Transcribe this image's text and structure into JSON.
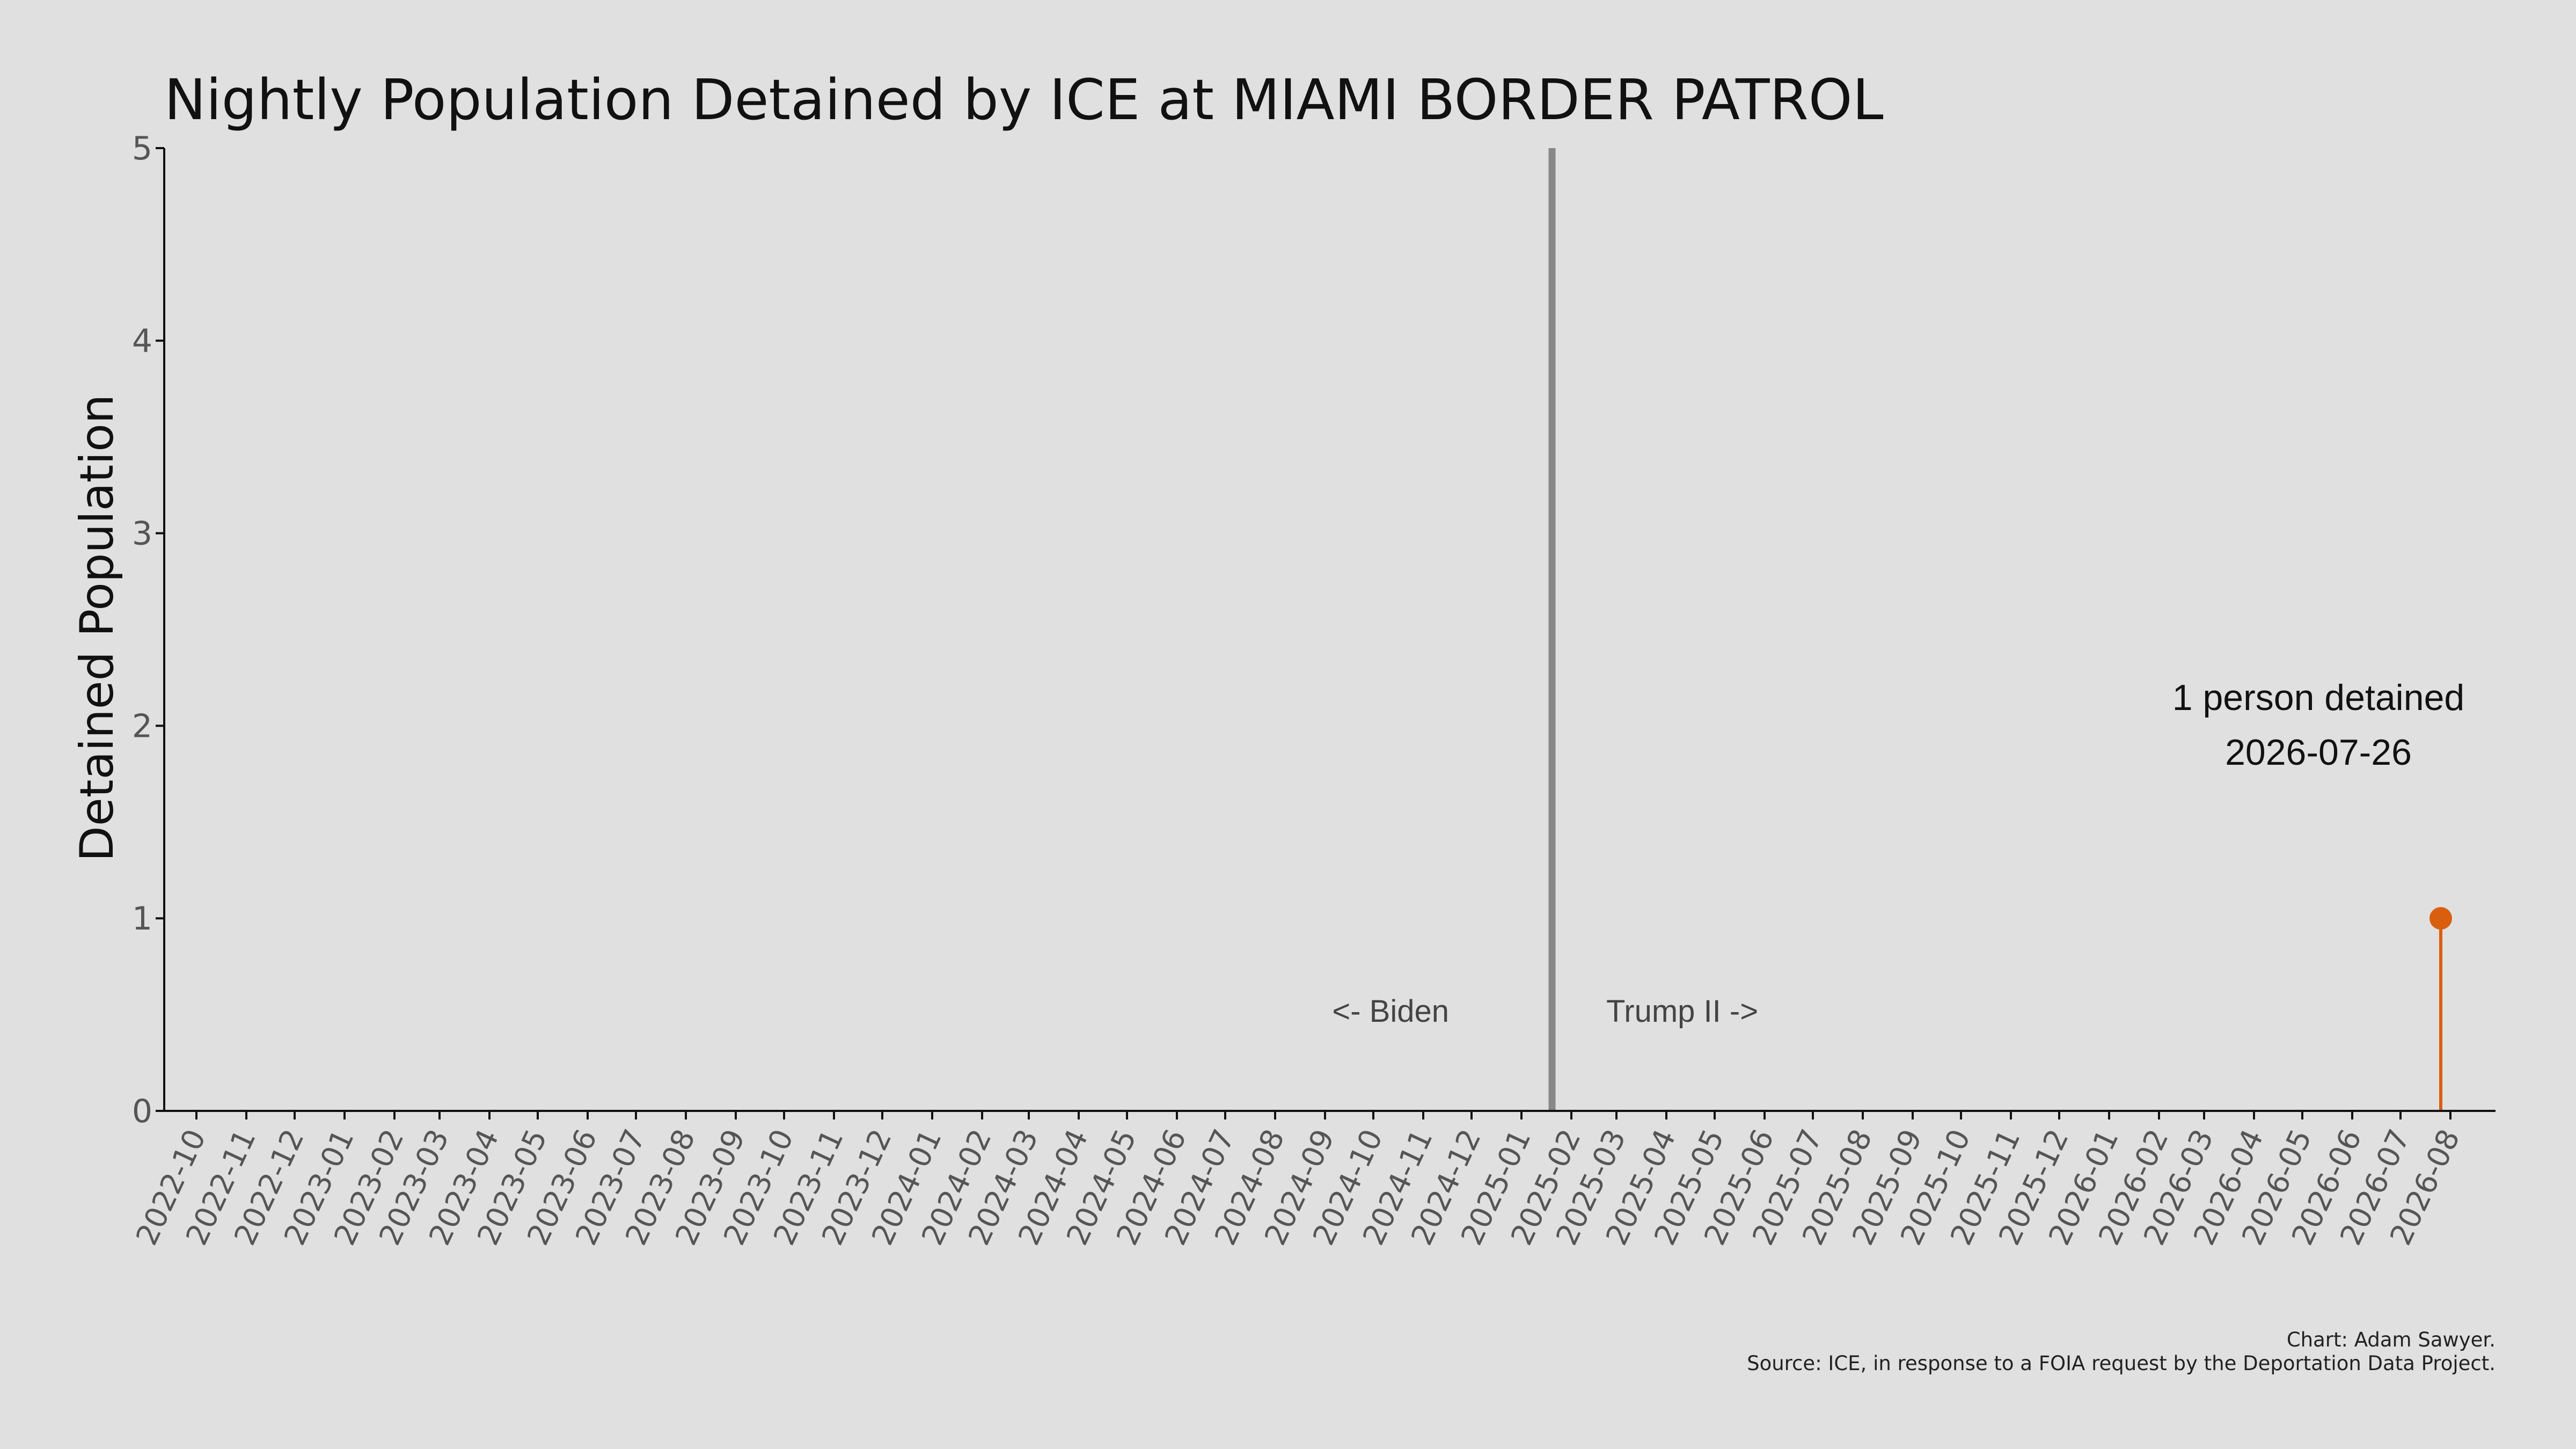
{
  "chart_data": {
    "type": "line",
    "title": "Nightly Population Detained by ICE at MIAMI BORDER PATROL",
    "ylabel": "Detained Population",
    "xlabel": "",
    "ylim": [
      0,
      5
    ],
    "y_ticks": [
      "0",
      "1",
      "2",
      "3",
      "4",
      "5"
    ],
    "xlim": [
      "2022-09-11",
      "2026-08-29"
    ],
    "x_ticks": [
      "2022-10",
      "2022-11",
      "2022-12",
      "2023-01",
      "2023-02",
      "2023-03",
      "2023-04",
      "2023-05",
      "2023-06",
      "2023-07",
      "2023-08",
      "2023-09",
      "2023-10",
      "2023-11",
      "2023-12",
      "2024-01",
      "2024-02",
      "2024-03",
      "2024-04",
      "2024-05",
      "2024-06",
      "2024-07",
      "2024-08",
      "2024-09",
      "2024-10",
      "2024-11",
      "2024-12",
      "2025-01",
      "2025-02",
      "2025-03",
      "2025-04",
      "2025-05",
      "2025-06",
      "2025-07",
      "2025-08",
      "2025-09",
      "2025-10",
      "2025-11",
      "2025-12",
      "2026-01",
      "2026-02",
      "2026-03",
      "2026-04",
      "2026-05",
      "2026-06",
      "2026-07",
      "2026-08"
    ],
    "grid": false,
    "series": [
      {
        "color": "#d95f0e",
        "points": [
          {
            "x": "2026-07-26",
            "y": 1
          }
        ]
      }
    ],
    "vline": {
      "x": "2025-01-20",
      "color": "#888888"
    },
    "era_left": "<- Biden",
    "era_right": "Trump II ->",
    "annotation": {
      "line1": "1 person detained",
      "line2": "2026-07-26",
      "x": "2026-07-26",
      "y": 1
    },
    "credit": {
      "line1": "Chart: Adam Sawyer.",
      "line2": "Source: ICE, in response to a FOIA request by the Deportation Data Project."
    }
  }
}
